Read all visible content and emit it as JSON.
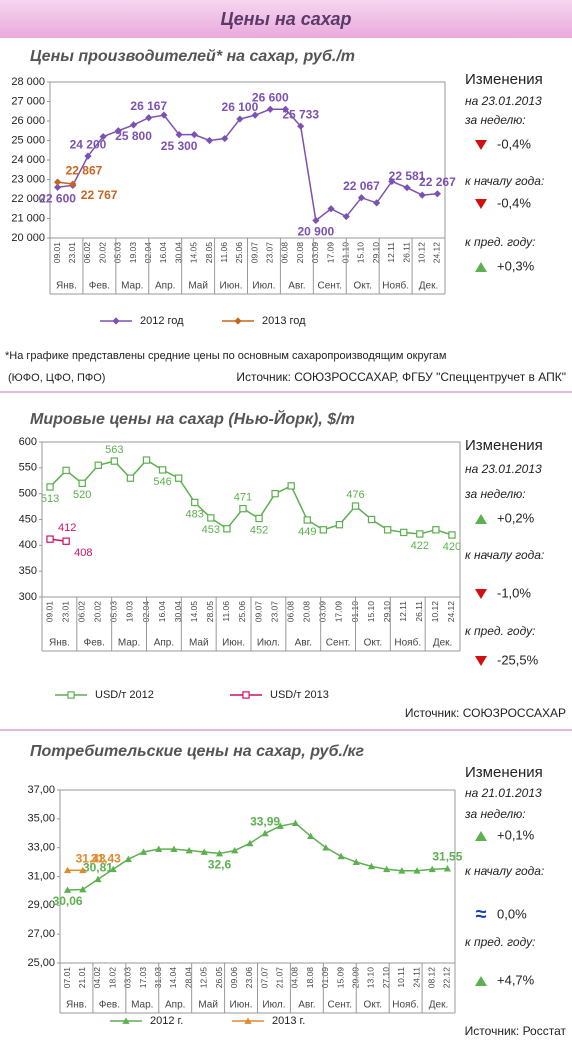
{
  "header": {
    "title": "Цены на сахар"
  },
  "chart_data": [
    {
      "type": "line",
      "title": "Цены производителей* на сахар, руб./т",
      "x": [
        "09.01",
        "23.01",
        "06.02",
        "20.02",
        "05.03",
        "19.03",
        "02.04",
        "16.04",
        "30.04",
        "14.05",
        "28.05",
        "11.06",
        "25.06",
        "09.07",
        "23.07",
        "06.08",
        "20.08",
        "03.09",
        "17.09",
        "01.10",
        "15.10",
        "29.10",
        "12.11",
        "26.11",
        "10.12",
        "24.12"
      ],
      "months": [
        "Янв.",
        "Фев.",
        "Мар.",
        "Апр.",
        "Май",
        "Июн.",
        "Июл.",
        "Авг.",
        "Сент.",
        "Окт.",
        "Нояб.",
        "Дек."
      ],
      "ylim": [
        20000,
        28000
      ],
      "yticks": [
        {
          "value": 20000,
          "label": "20 000"
        },
        {
          "value": 21000,
          "label": "21 000"
        },
        {
          "value": 22000,
          "label": "22 000"
        },
        {
          "value": 23000,
          "label": "23 000"
        },
        {
          "value": 24000,
          "label": "24 000"
        },
        {
          "value": 25000,
          "label": "25 000"
        },
        {
          "value": 26000,
          "label": "26 000"
        },
        {
          "value": 27000,
          "label": "27 000"
        },
        {
          "value": 28000,
          "label": "28 000"
        }
      ],
      "marker": "diamond",
      "series": [
        {
          "name": "2012 год",
          "color": "#7b52b3",
          "values": [
            22600,
            22700,
            24200,
            25200,
            25500,
            25800,
            26167,
            26300,
            25300,
            25300,
            25000,
            25100,
            26100,
            26300,
            26600,
            26600,
            25733,
            20900,
            21500,
            21100,
            22067,
            21800,
            22900,
            22581,
            22200,
            22267
          ],
          "value_labels": [
            "22 600",
            null,
            "24 200",
            null,
            null,
            "25 800",
            "26 167",
            null,
            "25 300",
            null,
            null,
            null,
            "26 100",
            null,
            "26 600",
            null,
            "25 733",
            "20 900",
            null,
            null,
            "22 067",
            null,
            null,
            "22 581",
            null,
            "22 267"
          ]
        },
        {
          "name": "2013 год",
          "color": "#c8641e",
          "values": [
            22867,
            22767,
            null,
            null,
            null,
            null,
            null,
            null,
            null,
            null,
            null,
            null,
            null,
            null,
            null,
            null,
            null,
            null,
            null,
            null,
            null,
            null,
            null,
            null,
            null,
            null
          ],
          "value_labels": [
            "22 867",
            "22 767",
            null,
            null,
            null,
            null,
            null,
            null,
            null,
            null,
            null,
            null,
            null,
            null,
            null,
            null,
            null,
            null,
            null,
            null,
            null,
            null,
            null,
            null,
            null,
            null
          ]
        }
      ],
      "notes": [
        "*На графике представлены средние цены по основным сахаропроизводящим округам",
        "(ЮФО, ЦФО, ПФО)"
      ],
      "source": "Источник: СОЮЗРОССАХАР, ФГБУ \"Спеццентручет в АПК\"",
      "changes": {
        "title": "Изменения",
        "date": "на 23.01.2013",
        "items": [
          {
            "label": "за неделю:",
            "value": "-0,4%",
            "trend": "down"
          },
          {
            "label": "к началу года:",
            "value": "-0,4%",
            "trend": "down"
          },
          {
            "label": "к пред. году:",
            "value": "+0,3%",
            "trend": "up"
          }
        ]
      }
    },
    {
      "type": "line",
      "title": "Мировые цены на сахар (Нью-Йорк), $/т",
      "x": [
        "09.01",
        "23.01",
        "06.02",
        "20.02",
        "05.03",
        "19.03",
        "02.04",
        "16.04",
        "30.04",
        "14.05",
        "28.05",
        "11.06",
        "25.06",
        "09.07",
        "23.07",
        "06.08",
        "20.08",
        "03.09",
        "17.09",
        "01.10",
        "15.10",
        "29.10",
        "12.11",
        "26.11",
        "10.12",
        "24.12"
      ],
      "months": [
        "Янв.",
        "Фев.",
        "Мар.",
        "Апр.",
        "Май",
        "Июн.",
        "Июл.",
        "Авг.",
        "Сент.",
        "Окт.",
        "Нояб.",
        "Дек."
      ],
      "ylim": [
        300,
        600
      ],
      "yticks": [
        300,
        350,
        400,
        450,
        500,
        550,
        600
      ],
      "marker": "square",
      "series": [
        {
          "name": "USD/т 2012",
          "color": "#5cb04e",
          "values": [
            513,
            545,
            520,
            555,
            563,
            530,
            565,
            546,
            530,
            483,
            453,
            432,
            471,
            452,
            500,
            515,
            449,
            430,
            440,
            476,
            450,
            430,
            425,
            422,
            430,
            420
          ],
          "value_labels": [
            "513",
            null,
            "520",
            null,
            "563",
            null,
            null,
            "546",
            null,
            "483",
            "453",
            null,
            "471",
            "452",
            null,
            null,
            "449",
            null,
            null,
            "476",
            null,
            null,
            null,
            "422",
            null,
            "420"
          ]
        },
        {
          "name": "USD/т 2013",
          "color": "#cc1166",
          "values": [
            412,
            408,
            null,
            null,
            null,
            null,
            null,
            null,
            null,
            null,
            null,
            null,
            null,
            null,
            null,
            null,
            null,
            null,
            null,
            null,
            null,
            null,
            null,
            null,
            null,
            null
          ],
          "value_labels": [
            "412",
            "408",
            null,
            null,
            null,
            null,
            null,
            null,
            null,
            null,
            null,
            null,
            null,
            null,
            null,
            null,
            null,
            null,
            null,
            null,
            null,
            null,
            null,
            null,
            null,
            null
          ]
        }
      ],
      "source": "Источник: СОЮЗРОССАХАР",
      "changes": {
        "title": "Изменения",
        "date": "на 23.01.2013",
        "items": [
          {
            "label": "за неделю:",
            "value": "+0,2%",
            "trend": "up"
          },
          {
            "label": "к началу года:",
            "value": "-1,0%",
            "trend": "down"
          },
          {
            "label": "к пред. году:",
            "value": "-25,5%",
            "trend": "down"
          }
        ]
      }
    },
    {
      "type": "line",
      "title": "Потребительские цены на сахар, руб./кг",
      "x": [
        "07.01",
        "21.01",
        "04.02",
        "18.02",
        "03.03",
        "17.03",
        "31.03",
        "14.04",
        "28.04",
        "12.05",
        "26.05",
        "09.06",
        "23.06",
        "07.07",
        "21.07",
        "04.08",
        "18.08",
        "01.09",
        "15.09",
        "29.09",
        "13.10",
        "27.10",
        "10.11",
        "24.11",
        "08.12",
        "22.12"
      ],
      "months": [
        "Янв.",
        "Фев.",
        "Мар.",
        "Апр.",
        "Май",
        "Июн.",
        "Июл.",
        "Авг.",
        "Сент.",
        "Окт.",
        "Нояб.",
        "Дек."
      ],
      "ylim": [
        25,
        37
      ],
      "yticks": [
        {
          "value": 25,
          "label": "25,00"
        },
        {
          "value": 27,
          "label": "27,00"
        },
        {
          "value": 29,
          "label": "29,00"
        },
        {
          "value": 31,
          "label": "31,00"
        },
        {
          "value": 33,
          "label": "33,00"
        },
        {
          "value": 35,
          "label": "35,00"
        },
        {
          "value": 37,
          "label": "37,00"
        }
      ],
      "marker": "triangle",
      "series": [
        {
          "name": "2012 г.",
          "color": "#5cb04e",
          "values": [
            30.06,
            30.1,
            30.81,
            31.5,
            32.2,
            32.7,
            32.9,
            32.9,
            32.8,
            32.7,
            32.6,
            32.8,
            33.3,
            33.99,
            34.5,
            34.7,
            33.8,
            33.0,
            32.4,
            32.0,
            31.7,
            31.5,
            31.4,
            31.4,
            31.5,
            31.55
          ],
          "value_labels": [
            "30,06",
            null,
            "30,81",
            null,
            null,
            null,
            null,
            null,
            null,
            null,
            "32,6",
            null,
            null,
            "33,99",
            null,
            null,
            null,
            null,
            null,
            null,
            null,
            null,
            null,
            null,
            null,
            "31,55"
          ]
        },
        {
          "name": "2013 г.",
          "color": "#e08a2c",
          "values": [
            31.43,
            31.43,
            null,
            null,
            null,
            null,
            null,
            null,
            null,
            null,
            null,
            null,
            null,
            null,
            null,
            null,
            null,
            null,
            null,
            null,
            null,
            null,
            null,
            null,
            null,
            null
          ],
          "value_labels": [
            "31,43",
            "31,43",
            null,
            null,
            null,
            null,
            null,
            null,
            null,
            null,
            null,
            null,
            null,
            null,
            null,
            null,
            null,
            null,
            null,
            null,
            null,
            null,
            null,
            null,
            null,
            null
          ]
        }
      ],
      "source": "Источник: Росстат",
      "changes": {
        "title": "Изменения",
        "date": "на 21.01.2013",
        "items": [
          {
            "label": "за неделю:",
            "value": "+0,1%",
            "trend": "up"
          },
          {
            "label": "к началу года:",
            "value": "0,0%",
            "trend": "eq",
            "symbol": "≈"
          },
          {
            "label": "к пред. году:",
            "value": "+4,7%",
            "trend": "up"
          }
        ]
      }
    }
  ]
}
